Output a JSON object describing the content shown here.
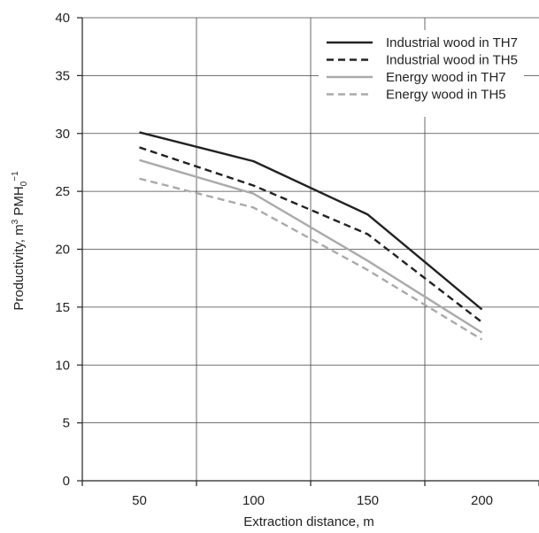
{
  "chart_data": {
    "type": "line",
    "x": [
      50,
      100,
      150,
      200
    ],
    "xlabel": "Extraction distance, m",
    "ylabel": {
      "pre": "Productivity, m",
      "sup1": "3",
      "mid": " PMH",
      "sub": "0",
      "sup2": "−1"
    },
    "ylim": [
      0,
      40
    ],
    "yticks": [
      0,
      5,
      10,
      15,
      20,
      25,
      30,
      35,
      40
    ],
    "xticks": [
      50,
      100,
      150,
      200
    ],
    "grid": true,
    "legend_position": "top-right",
    "series": [
      {
        "name": "Industrial wood in TH7",
        "values": [
          30.1,
          27.6,
          23.0,
          14.8
        ],
        "color": "#222222",
        "dash": "solid"
      },
      {
        "name": "Industrial wood in TH5",
        "values": [
          28.8,
          25.5,
          21.3,
          13.7
        ],
        "color": "#222222",
        "dash": "dashed"
      },
      {
        "name": "Energy wood in TH7",
        "values": [
          27.7,
          24.8,
          19.0,
          12.8
        ],
        "color": "#aaaaaa",
        "dash": "solid"
      },
      {
        "name": "Energy wood in TH5",
        "values": [
          26.1,
          23.6,
          18.2,
          12.2
        ],
        "color": "#aaaaaa",
        "dash": "dashed"
      }
    ]
  }
}
